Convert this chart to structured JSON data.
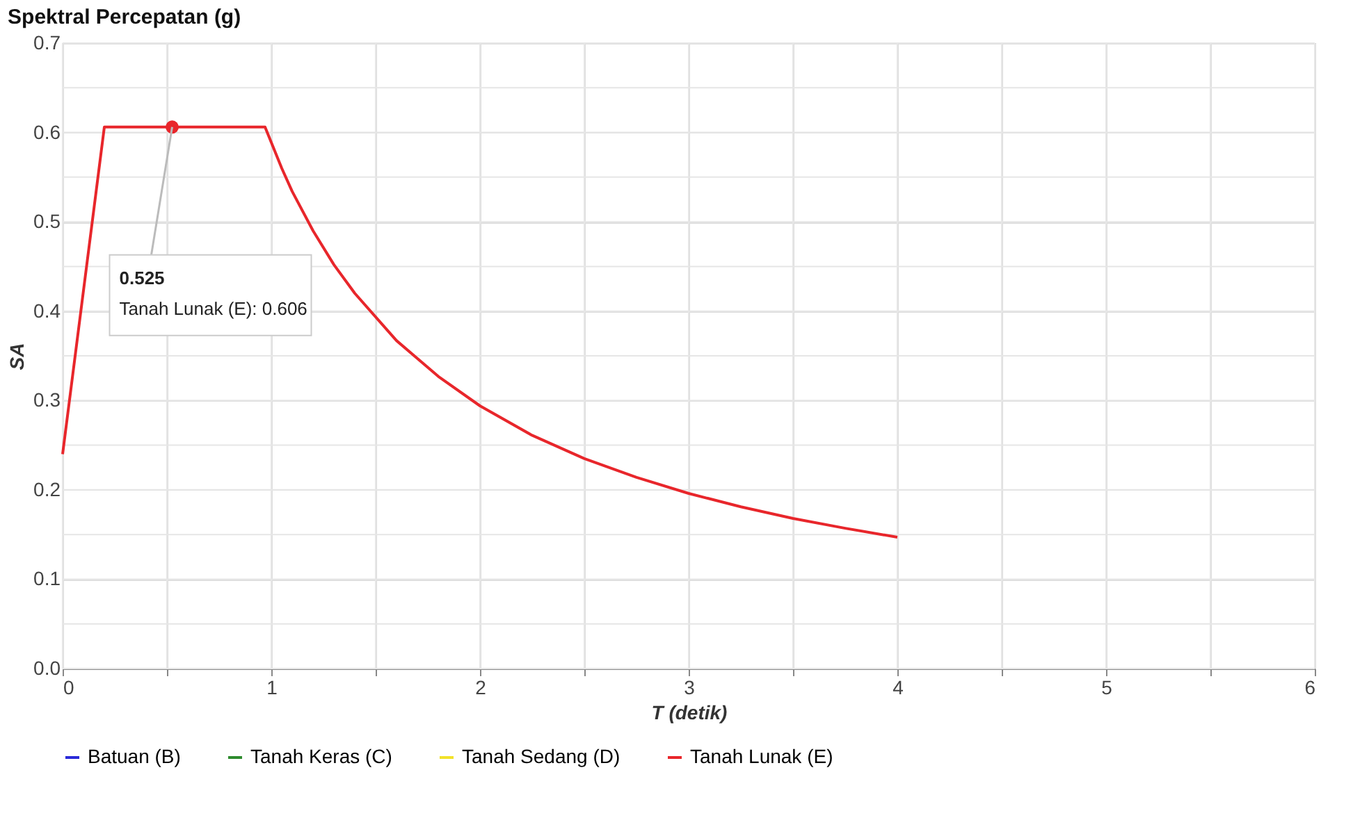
{
  "chart_data": {
    "type": "line",
    "title": "Spektral Percepatan (g)",
    "xlabel": "T (detik)",
    "ylabel": "SA",
    "xlim": [
      0,
      6
    ],
    "ylim": [
      0,
      0.7
    ],
    "xticks": [
      0,
      {
        "value": 0.5,
        "label": null
      },
      1,
      {
        "value": 1.5,
        "label": null
      },
      2,
      {
        "value": 2.5,
        "label": null
      },
      3,
      {
        "value": 3.5,
        "label": null
      },
      4,
      {
        "value": 4.5,
        "label": null
      },
      5,
      {
        "value": 5.5,
        "label": null
      },
      6
    ],
    "yticks": [
      {
        "value": 0,
        "label": "0.0"
      },
      {
        "value": 0.05,
        "label": null
      },
      {
        "value": 0.1,
        "label": "0.1"
      },
      {
        "value": 0.15,
        "label": null
      },
      {
        "value": 0.2,
        "label": "0.2"
      },
      {
        "value": 0.25,
        "label": null
      },
      {
        "value": 0.3,
        "label": "0.3"
      },
      {
        "value": 0.35,
        "label": null
      },
      {
        "value": 0.4,
        "label": "0.4"
      },
      {
        "value": 0.45,
        "label": null
      },
      {
        "value": 0.5,
        "label": "0.5"
      },
      {
        "value": 0.55,
        "label": null
      },
      {
        "value": 0.6,
        "label": "0.6"
      },
      {
        "value": 0.65,
        "label": null
      },
      {
        "value": 0.7,
        "label": "0.7"
      }
    ],
    "grid": true,
    "legend": "bottom",
    "marker": "none",
    "line_style": "solid",
    "series": [
      {
        "name": "Batuan (B)",
        "color": "#2a2ad8"
      },
      {
        "name": "Tanah Keras (C)",
        "color": "#2e8b2e"
      },
      {
        "name": "Tanah Sedang (D)",
        "color": "#f2e22a"
      },
      {
        "name": "Tanah Lunak (E)",
        "color": "#e8262b",
        "x": [
          0,
          0.2,
          0.97,
          1.05,
          1.1,
          1.2,
          1.3,
          1.4,
          1.6,
          1.8,
          2.0,
          2.25,
          2.5,
          2.75,
          3.0,
          3.25,
          3.5,
          3.75,
          4.0
        ],
        "values": [
          0.24,
          0.606,
          0.606,
          0.56,
          0.534,
          0.49,
          0.452,
          0.42,
          0.367,
          0.327,
          0.294,
          0.261,
          0.235,
          0.214,
          0.196,
          0.181,
          0.168,
          0.157,
          0.147
        ]
      }
    ],
    "annotations": [
      {
        "text": "0.525\nTanah Lunak (E): 0.606",
        "x": 0.525,
        "y": 0.606
      }
    ]
  }
}
